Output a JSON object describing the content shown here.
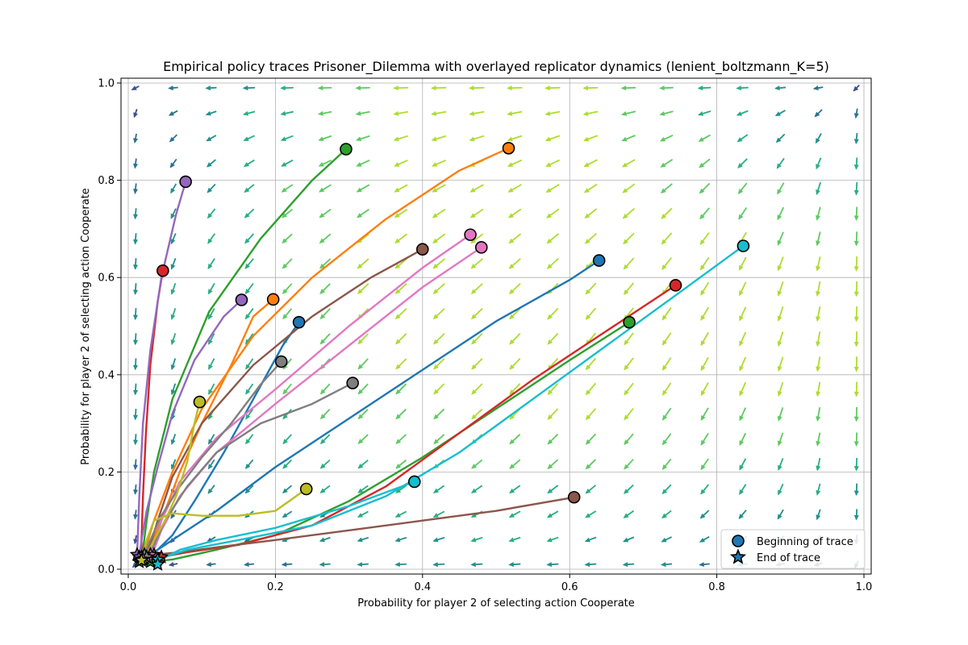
{
  "chart_data": {
    "type": "line",
    "title": "Empirical policy traces Prisoner_Dilemma with overlayed replicator dynamics (lenient_boltzmann_K=5)",
    "xlabel": "Probability for player 2 of selecting action Cooperate",
    "ylabel": "Probability for player 2 of selecting action Cooperate",
    "xlim": [
      0,
      1
    ],
    "ylim": [
      0,
      1
    ],
    "xticks": [
      "0.0",
      "0.2",
      "0.4",
      "0.6",
      "0.8",
      "1.0"
    ],
    "yticks": [
      "0.0",
      "0.2",
      "0.4",
      "0.6",
      "0.8",
      "1.0"
    ],
    "grid": true,
    "legend": {
      "position": "lower-right",
      "entries": [
        {
          "label": "Beginning of trace",
          "marker": "circle"
        },
        {
          "label": "End of trace",
          "marker": "star"
        }
      ]
    },
    "overlay": "replicator dynamics quiver field (arrows pointing toward (0,0), colored by magnitude)",
    "series": [
      {
        "color": "#1f77b4",
        "points": [
          [
            0.64,
            0.635
          ],
          [
            0.6,
            0.595
          ],
          [
            0.5,
            0.51
          ],
          [
            0.4,
            0.41
          ],
          [
            0.3,
            0.31
          ],
          [
            0.2,
            0.21
          ],
          [
            0.12,
            0.12
          ],
          [
            0.07,
            0.07
          ],
          [
            0.04,
            0.04
          ],
          [
            0.03,
            0.03
          ]
        ]
      },
      {
        "color": "#1f77b4",
        "points": [
          [
            0.232,
            0.508
          ],
          [
            0.21,
            0.46
          ],
          [
            0.17,
            0.35
          ],
          [
            0.13,
            0.24
          ],
          [
            0.09,
            0.14
          ],
          [
            0.06,
            0.07
          ],
          [
            0.04,
            0.04
          ],
          [
            0.025,
            0.025
          ]
        ]
      },
      {
        "color": "#ff7f0e",
        "points": [
          [
            0.517,
            0.866
          ],
          [
            0.45,
            0.82
          ],
          [
            0.35,
            0.72
          ],
          [
            0.25,
            0.6
          ],
          [
            0.17,
            0.48
          ],
          [
            0.1,
            0.33
          ],
          [
            0.06,
            0.2
          ],
          [
            0.035,
            0.1
          ],
          [
            0.025,
            0.05
          ],
          [
            0.02,
            0.02
          ]
        ]
      },
      {
        "color": "#ff7f0e",
        "points": [
          [
            0.197,
            0.555
          ],
          [
            0.17,
            0.52
          ],
          [
            0.14,
            0.42
          ],
          [
            0.1,
            0.3
          ],
          [
            0.07,
            0.2
          ],
          [
            0.045,
            0.1
          ],
          [
            0.03,
            0.05
          ],
          [
            0.02,
            0.02
          ]
        ]
      },
      {
        "color": "#2ca02c",
        "points": [
          [
            0.296,
            0.864
          ],
          [
            0.25,
            0.8
          ],
          [
            0.18,
            0.68
          ],
          [
            0.11,
            0.53
          ],
          [
            0.06,
            0.35
          ],
          [
            0.035,
            0.2
          ],
          [
            0.025,
            0.1
          ],
          [
            0.02,
            0.04
          ],
          [
            0.015,
            0.015
          ]
        ]
      },
      {
        "color": "#2ca02c",
        "points": [
          [
            0.681,
            0.508
          ],
          [
            0.6,
            0.43
          ],
          [
            0.5,
            0.33
          ],
          [
            0.4,
            0.23
          ],
          [
            0.3,
            0.14
          ],
          [
            0.2,
            0.07
          ],
          [
            0.12,
            0.04
          ],
          [
            0.06,
            0.02
          ],
          [
            0.03,
            0.015
          ]
        ]
      },
      {
        "color": "#d62728",
        "points": [
          [
            0.047,
            0.614
          ],
          [
            0.04,
            0.55
          ],
          [
            0.03,
            0.42
          ],
          [
            0.024,
            0.28
          ],
          [
            0.02,
            0.15
          ],
          [
            0.018,
            0.06
          ],
          [
            0.018,
            0.025
          ]
        ]
      },
      {
        "color": "#d62728",
        "points": [
          [
            0.744,
            0.584
          ],
          [
            0.65,
            0.49
          ],
          [
            0.55,
            0.39
          ],
          [
            0.45,
            0.28
          ],
          [
            0.35,
            0.17
          ],
          [
            0.25,
            0.09
          ],
          [
            0.15,
            0.05
          ],
          [
            0.08,
            0.035
          ],
          [
            0.045,
            0.025
          ]
        ]
      },
      {
        "color": "#9467bd",
        "points": [
          [
            0.078,
            0.797
          ],
          [
            0.065,
            0.73
          ],
          [
            0.045,
            0.6
          ],
          [
            0.03,
            0.45
          ],
          [
            0.02,
            0.3
          ],
          [
            0.015,
            0.15
          ],
          [
            0.013,
            0.07
          ],
          [
            0.012,
            0.03
          ]
        ]
      },
      {
        "color": "#9467bd",
        "points": [
          [
            0.154,
            0.554
          ],
          [
            0.13,
            0.52
          ],
          [
            0.09,
            0.43
          ],
          [
            0.06,
            0.32
          ],
          [
            0.04,
            0.21
          ],
          [
            0.025,
            0.12
          ],
          [
            0.018,
            0.06
          ],
          [
            0.015,
            0.025
          ]
        ]
      },
      {
        "color": "#8c564b",
        "points": [
          [
            0.4,
            0.658
          ],
          [
            0.33,
            0.6
          ],
          [
            0.25,
            0.52
          ],
          [
            0.17,
            0.42
          ],
          [
            0.1,
            0.3
          ],
          [
            0.06,
            0.19
          ],
          [
            0.04,
            0.1
          ],
          [
            0.03,
            0.05
          ],
          [
            0.022,
            0.022
          ]
        ]
      },
      {
        "color": "#8c564b",
        "points": [
          [
            0.606,
            0.148
          ],
          [
            0.5,
            0.12
          ],
          [
            0.4,
            0.1
          ],
          [
            0.3,
            0.08
          ],
          [
            0.2,
            0.06
          ],
          [
            0.12,
            0.045
          ],
          [
            0.07,
            0.035
          ],
          [
            0.035,
            0.03
          ]
        ]
      },
      {
        "color": "#e377c2",
        "points": [
          [
            0.465,
            0.688
          ],
          [
            0.4,
            0.62
          ],
          [
            0.3,
            0.5
          ],
          [
            0.2,
            0.37
          ],
          [
            0.12,
            0.27
          ],
          [
            0.07,
            0.18
          ],
          [
            0.045,
            0.1
          ],
          [
            0.035,
            0.05
          ],
          [
            0.03,
            0.03
          ]
        ]
      },
      {
        "color": "#e377c2",
        "points": [
          [
            0.48,
            0.662
          ],
          [
            0.4,
            0.58
          ],
          [
            0.3,
            0.46
          ],
          [
            0.2,
            0.34
          ],
          [
            0.12,
            0.24
          ],
          [
            0.07,
            0.15
          ],
          [
            0.045,
            0.08
          ],
          [
            0.035,
            0.04
          ],
          [
            0.028,
            0.022
          ]
        ]
      },
      {
        "color": "#7f7f7f",
        "points": [
          [
            0.208,
            0.427
          ],
          [
            0.18,
            0.38
          ],
          [
            0.14,
            0.3
          ],
          [
            0.1,
            0.23
          ],
          [
            0.07,
            0.17
          ],
          [
            0.045,
            0.11
          ],
          [
            0.03,
            0.06
          ],
          [
            0.022,
            0.03
          ]
        ]
      },
      {
        "color": "#7f7f7f",
        "points": [
          [
            0.305,
            0.383
          ],
          [
            0.25,
            0.34
          ],
          [
            0.18,
            0.3
          ],
          [
            0.12,
            0.24
          ],
          [
            0.08,
            0.17
          ],
          [
            0.05,
            0.1
          ],
          [
            0.035,
            0.05
          ],
          [
            0.025,
            0.025
          ]
        ]
      },
      {
        "color": "#bcbd22",
        "points": [
          [
            0.097,
            0.344
          ],
          [
            0.09,
            0.3
          ],
          [
            0.08,
            0.22
          ],
          [
            0.065,
            0.15
          ],
          [
            0.05,
            0.1
          ],
          [
            0.035,
            0.06
          ],
          [
            0.025,
            0.03
          ],
          [
            0.02,
            0.02
          ]
        ]
      },
      {
        "color": "#bcbd22",
        "points": [
          [
            0.242,
            0.165
          ],
          [
            0.2,
            0.12
          ],
          [
            0.15,
            0.11
          ],
          [
            0.1,
            0.11
          ],
          [
            0.06,
            0.115
          ],
          [
            0.035,
            0.1
          ],
          [
            0.025,
            0.06
          ],
          [
            0.02,
            0.03
          ],
          [
            0.018,
            0.018
          ]
        ]
      },
      {
        "color": "#17becf",
        "points": [
          [
            0.836,
            0.665
          ],
          [
            0.75,
            0.57
          ],
          [
            0.65,
            0.46
          ],
          [
            0.55,
            0.35
          ],
          [
            0.45,
            0.24
          ],
          [
            0.35,
            0.15
          ],
          [
            0.25,
            0.09
          ],
          [
            0.15,
            0.06
          ],
          [
            0.08,
            0.04
          ],
          [
            0.04,
            0.02
          ]
        ]
      },
      {
        "color": "#17becf",
        "points": [
          [
            0.389,
            0.18
          ],
          [
            0.3,
            0.13
          ],
          [
            0.2,
            0.085
          ],
          [
            0.12,
            0.06
          ],
          [
            0.07,
            0.04
          ],
          [
            0.045,
            0.02
          ],
          [
            0.04,
            0.01
          ]
        ]
      }
    ]
  }
}
